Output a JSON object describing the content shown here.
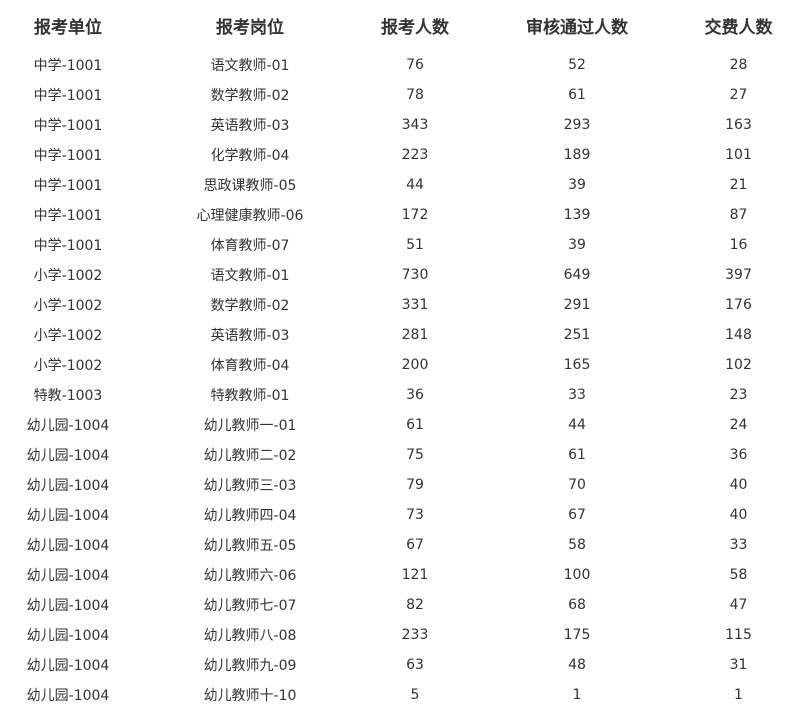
{
  "table": {
    "headers": [
      "报考单位",
      "报考岗位",
      "报考人数",
      "审核通过人数",
      "交费人数"
    ],
    "rows": [
      [
        "中学-1001",
        "语文教师-01",
        "76",
        "52",
        "28"
      ],
      [
        "中学-1001",
        "数学教师-02",
        "78",
        "61",
        "27"
      ],
      [
        "中学-1001",
        "英语教师-03",
        "343",
        "293",
        "163"
      ],
      [
        "中学-1001",
        "化学教师-04",
        "223",
        "189",
        "101"
      ],
      [
        "中学-1001",
        "思政课教师-05",
        "44",
        "39",
        "21"
      ],
      [
        "中学-1001",
        "心理健康教师-06",
        "172",
        "139",
        "87"
      ],
      [
        "中学-1001",
        "体育教师-07",
        "51",
        "39",
        "16"
      ],
      [
        "小学-1002",
        "语文教师-01",
        "730",
        "649",
        "397"
      ],
      [
        "小学-1002",
        "数学教师-02",
        "331",
        "291",
        "176"
      ],
      [
        "小学-1002",
        "英语教师-03",
        "281",
        "251",
        "148"
      ],
      [
        "小学-1002",
        "体育教师-04",
        "200",
        "165",
        "102"
      ],
      [
        "特教-1003",
        "特教教师-01",
        "36",
        "33",
        "23"
      ],
      [
        "幼儿园-1004",
        "幼儿教师一-01",
        "61",
        "44",
        "24"
      ],
      [
        "幼儿园-1004",
        "幼儿教师二-02",
        "75",
        "61",
        "36"
      ],
      [
        "幼儿园-1004",
        "幼儿教师三-03",
        "79",
        "70",
        "40"
      ],
      [
        "幼儿园-1004",
        "幼儿教师四-04",
        "73",
        "67",
        "40"
      ],
      [
        "幼儿园-1004",
        "幼儿教师五-05",
        "67",
        "58",
        "33"
      ],
      [
        "幼儿园-1004",
        "幼儿教师六-06",
        "121",
        "100",
        "58"
      ],
      [
        "幼儿园-1004",
        "幼儿教师七-07",
        "82",
        "68",
        "47"
      ],
      [
        "幼儿园-1004",
        "幼儿教师八-08",
        "233",
        "175",
        "115"
      ],
      [
        "幼儿园-1004",
        "幼儿教师九-09",
        "63",
        "48",
        "31"
      ],
      [
        "幼儿园-1004",
        "幼儿教师十-10",
        "5",
        "1",
        "1"
      ]
    ]
  }
}
